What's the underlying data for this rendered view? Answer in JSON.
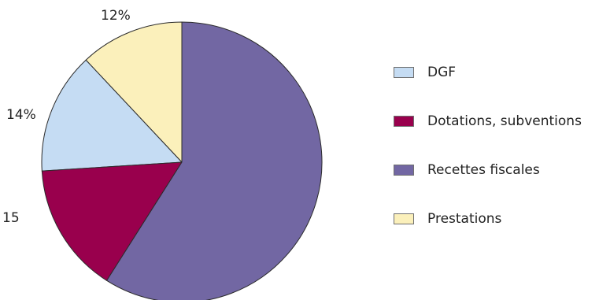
{
  "chart_data": {
    "type": "pie",
    "categories": [
      "DGF",
      "Dotations, subventions",
      "Recettes fiscales",
      "Prestations"
    ],
    "values": [
      14,
      15,
      59,
      12
    ],
    "value_labels": [
      "14%",
      "15",
      "",
      "12%"
    ],
    "colors": [
      "#c5dcf3",
      "#99004d",
      "#7267a3",
      "#fbf0bb"
    ],
    "legend_position": "right",
    "title": "",
    "slice_order_counterclockwise_from_top": [
      "Prestations",
      "DGF",
      "Dotations, subventions",
      "Recettes fiscales"
    ]
  }
}
